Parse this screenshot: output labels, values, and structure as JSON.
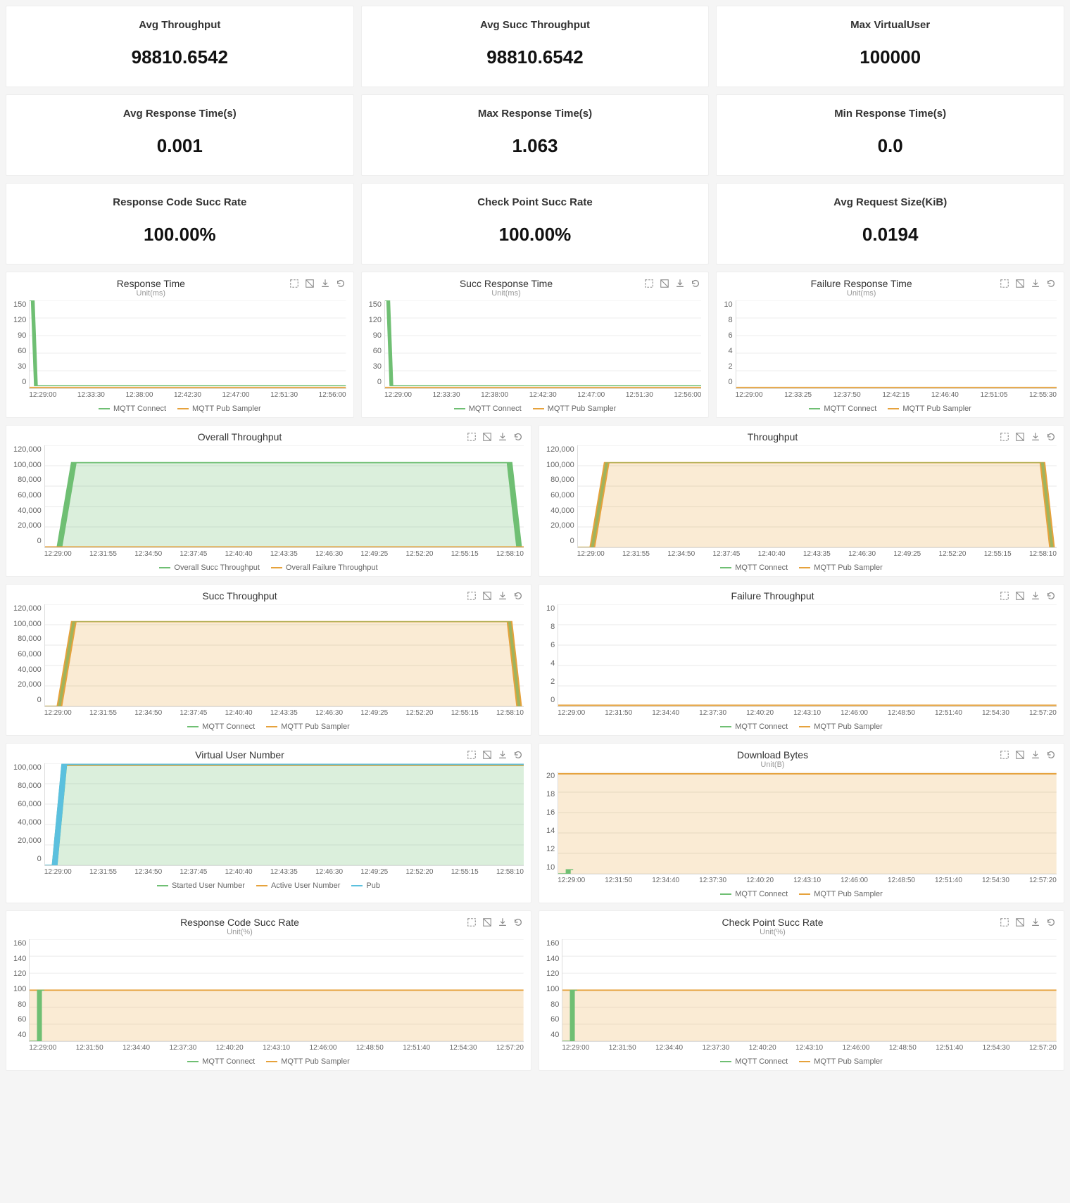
{
  "colors": {
    "green": "#6fbf73",
    "orange": "#e6a23c",
    "cyan": "#5bc0de",
    "green_fill": "rgba(111,191,115,0.25)",
    "orange_fill": "rgba(230,162,60,0.22)",
    "grid": "#f0f0f0",
    "bg": "#ffffff"
  },
  "metrics": [
    {
      "title": "Avg Throughput",
      "value": "98810.6542"
    },
    {
      "title": "Avg Succ Throughput",
      "value": "98810.6542"
    },
    {
      "title": "Max VirtualUser",
      "value": "100000"
    },
    {
      "title": "Avg Response Time(s)",
      "value": "0.001"
    },
    {
      "title": "Max Response Time(s)",
      "value": "1.063"
    },
    {
      "title": "Min Response Time(s)",
      "value": "0.0"
    },
    {
      "title": "Response Code Succ Rate",
      "value": "100.00%"
    },
    {
      "title": "Check Point Succ Rate",
      "value": "100.00%"
    },
    {
      "title": "Avg Request Size(KiB)",
      "value": "0.0194"
    }
  ],
  "x_common1": [
    "12:29:00",
    "12:33:30",
    "12:38:00",
    "12:42:30",
    "12:47:00",
    "12:51:30",
    "12:56:00"
  ],
  "x_common2": [
    "12:29:00",
    "12:33:25",
    "12:37:50",
    "12:42:15",
    "12:46:40",
    "12:51:05",
    "12:55:30"
  ],
  "x_wide": [
    "12:29:00",
    "12:31:55",
    "12:34:50",
    "12:37:45",
    "12:40:40",
    "12:43:35",
    "12:46:30",
    "12:49:25",
    "12:52:20",
    "12:55:15",
    "12:58:10"
  ],
  "x_wide2": [
    "12:29:00",
    "12:31:50",
    "12:34:40",
    "12:37:30",
    "12:40:20",
    "12:43:10",
    "12:46:00",
    "12:48:50",
    "12:51:40",
    "12:54:30",
    "12:57:20"
  ],
  "legend_mqtt": [
    {
      "label": "MQTT Connect",
      "color": "#6fbf73"
    },
    {
      "label": "MQTT Pub Sampler",
      "color": "#e6a23c"
    }
  ],
  "legend_overall": [
    {
      "label": "Overall Succ Throughput",
      "color": "#6fbf73"
    },
    {
      "label": "Overall Failure Throughput",
      "color": "#e6a23c"
    }
  ],
  "legend_vuser": [
    {
      "label": "Started User Number",
      "color": "#6fbf73"
    },
    {
      "label": "Active User Number",
      "color": "#e6a23c"
    },
    {
      "label": "Pub",
      "color": "#5bc0de"
    }
  ],
  "charts_row1": [
    {
      "title": "Response Time",
      "subtitle": "Unit(ms)",
      "yticks": [
        "150",
        "120",
        "90",
        "60",
        "30",
        "0"
      ],
      "xkey": "x_common1",
      "shape": "spike",
      "legend": "legend_mqtt"
    },
    {
      "title": "Succ Response Time",
      "subtitle": "Unit(ms)",
      "yticks": [
        "150",
        "120",
        "90",
        "60",
        "30",
        "0"
      ],
      "xkey": "x_common1",
      "shape": "spike",
      "legend": "legend_mqtt"
    },
    {
      "title": "Failure Response Time",
      "subtitle": "Unit(ms)",
      "yticks": [
        "10",
        "8",
        "6",
        "4",
        "2",
        "0"
      ],
      "xkey": "x_common2",
      "shape": "flatzero",
      "legend": "legend_mqtt"
    }
  ],
  "charts_rows2": [
    [
      {
        "title": "Overall Throughput",
        "subtitle": "",
        "yticks": [
          "120,000",
          "100,000",
          "80,000",
          "60,000",
          "40,000",
          "20,000",
          "0"
        ],
        "xkey": "x_wide",
        "shape": "plateau-green",
        "legend": "legend_overall"
      },
      {
        "title": "Throughput",
        "subtitle": "",
        "yticks": [
          "120,000",
          "100,000",
          "80,000",
          "60,000",
          "40,000",
          "20,000",
          "0"
        ],
        "xkey": "x_wide",
        "shape": "plateau-orange",
        "legend": "legend_mqtt"
      }
    ],
    [
      {
        "title": "Succ Throughput",
        "subtitle": "",
        "yticks": [
          "120,000",
          "100,000",
          "80,000",
          "60,000",
          "40,000",
          "20,000",
          "0"
        ],
        "xkey": "x_wide",
        "shape": "plateau-orange",
        "legend": "legend_mqtt"
      },
      {
        "title": "Failure Throughput",
        "subtitle": "",
        "yticks": [
          "10",
          "8",
          "6",
          "4",
          "2",
          "0"
        ],
        "xkey": "x_wide2",
        "shape": "flatzero",
        "legend": "legend_mqtt"
      }
    ],
    [
      {
        "title": "Virtual User Number",
        "subtitle": "",
        "yticks": [
          "100,000",
          "80,000",
          "60,000",
          "40,000",
          "20,000",
          "0"
        ],
        "xkey": "x_wide",
        "shape": "plateau-vuser",
        "legend": "legend_vuser"
      },
      {
        "title": "Download Bytes",
        "subtitle": "Unit(B)",
        "yticks": [
          "20",
          "18",
          "16",
          "14",
          "12",
          "10"
        ],
        "xkey": "x_wide2",
        "shape": "flat-top-orange",
        "legend": "legend_mqtt"
      }
    ],
    [
      {
        "title": "Response Code Succ Rate",
        "subtitle": "Unit(%)",
        "yticks": [
          "160",
          "140",
          "120",
          "100",
          "80",
          "60",
          "40"
        ],
        "xkey": "x_wide2",
        "shape": "flat-100-orange",
        "legend": "legend_mqtt"
      },
      {
        "title": "Check Point Succ Rate",
        "subtitle": "Unit(%)",
        "yticks": [
          "160",
          "140",
          "120",
          "100",
          "80",
          "60",
          "40"
        ],
        "xkey": "x_wide2",
        "shape": "flat-100-orange",
        "legend": "legend_mqtt"
      }
    ]
  ],
  "tool_icons": [
    "zoom-area-icon",
    "zoom-reset-icon",
    "download-icon",
    "refresh-icon"
  ]
}
